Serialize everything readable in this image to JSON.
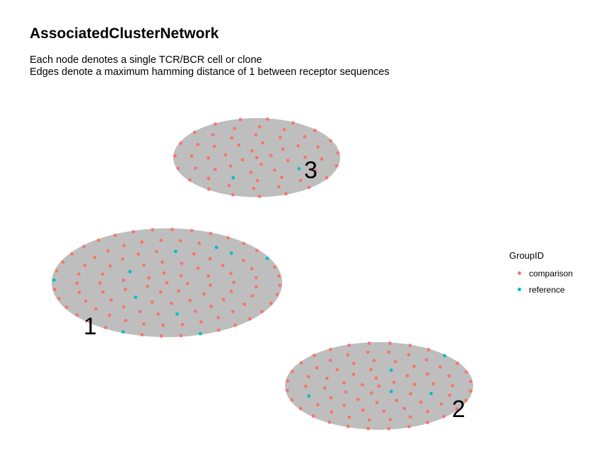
{
  "chart": {
    "title": "AssociatedClusterNetwork",
    "subtitle_lines": [
      "Each node denotes a single TCR/BCR cell or clone",
      "Edges denote a maximum hamming distance of 1 between receptor sequences"
    ]
  },
  "legend": {
    "title": "GroupID",
    "items": [
      {
        "label": "comparison",
        "color": "#F8766D"
      },
      {
        "label": "reference",
        "color": "#00BFC4"
      }
    ]
  },
  "colors": {
    "comparison": "#F8766D",
    "reference": "#00BFC4",
    "edge_fill": "#BEBEBE"
  },
  "chart_data": {
    "type": "network",
    "title": "AssociatedClusterNetwork",
    "legend_title": "GroupID",
    "groups": [
      "comparison",
      "reference"
    ],
    "clusters": [
      {
        "label": "1",
        "nodes": {
          "comparison": 100,
          "reference": 10
        }
      },
      {
        "label": "2",
        "nodes": {
          "comparison": 78,
          "reference": 5
        }
      },
      {
        "label": "3",
        "nodes": {
          "comparison": 58,
          "reference": 2
        }
      }
    ]
  }
}
